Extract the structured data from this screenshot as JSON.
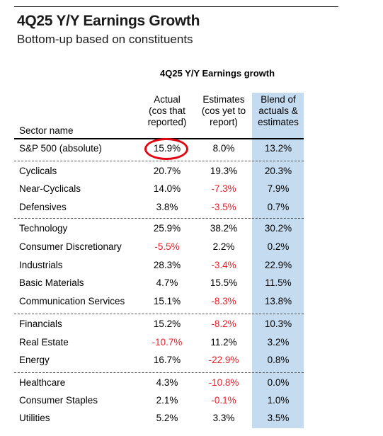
{
  "title": "4Q25 Y/Y Earnings Growth",
  "subtitle": "Bottom-up based on constituents",
  "table_heading": "4Q25 Y/Y Earnings growth",
  "columns": {
    "sector": "Sector name",
    "actual": [
      "Actual",
      "(cos that",
      "reported)"
    ],
    "estimates": [
      "Estimates",
      "(cos yet to",
      "report)"
    ],
    "blend": [
      "Blend of",
      "actuals &",
      "estimates"
    ]
  },
  "colors": {
    "negative": "#e8202a",
    "blend_background": "#c5dcf0",
    "highlight_circle": "#e30613"
  },
  "rows": [
    {
      "name": "S&P 500 (absolute)",
      "actual": "15.9%",
      "estimates": "8.0%",
      "blend": "13.2%"
    },
    {
      "name": "Cyclicals",
      "actual": "20.7%",
      "estimates": "19.3%",
      "blend": "20.3%"
    },
    {
      "name": "Near-Cyclicals",
      "actual": "14.0%",
      "estimates": "-7.3%",
      "blend": "7.9%"
    },
    {
      "name": "Defensives",
      "actual": "3.8%",
      "estimates": "-3.5%",
      "blend": "0.7%"
    },
    {
      "name": "Technology",
      "actual": "25.9%",
      "estimates": "38.2%",
      "blend": "30.2%"
    },
    {
      "name": "Consumer Discretionary",
      "actual": "-5.5%",
      "estimates": "2.2%",
      "blend": "0.2%"
    },
    {
      "name": "Industrials",
      "actual": "28.3%",
      "estimates": "-3.4%",
      "blend": "22.9%"
    },
    {
      "name": "Basic Materials",
      "actual": "4.7%",
      "estimates": "15.5%",
      "blend": "11.5%"
    },
    {
      "name": "Communication Services",
      "actual": "15.1%",
      "estimates": "-8.3%",
      "blend": "13.8%"
    },
    {
      "name": "Financials",
      "actual": "15.2%",
      "estimates": "-8.2%",
      "blend": "10.3%"
    },
    {
      "name": "Real Estate",
      "actual": "-10.7%",
      "estimates": "11.2%",
      "blend": "3.2%"
    },
    {
      "name": "Energy",
      "actual": "16.7%",
      "estimates": "-22.9%",
      "blend": "0.8%"
    },
    {
      "name": "Healthcare",
      "actual": "4.3%",
      "estimates": "-10.8%",
      "blend": "0.0%"
    },
    {
      "name": "Consumer Staples",
      "actual": "2.1%",
      "estimates": "-0.1%",
      "blend": "1.0%"
    },
    {
      "name": "Utilities",
      "actual": "5.2%",
      "estimates": "3.3%",
      "blend": "3.5%"
    }
  ]
}
